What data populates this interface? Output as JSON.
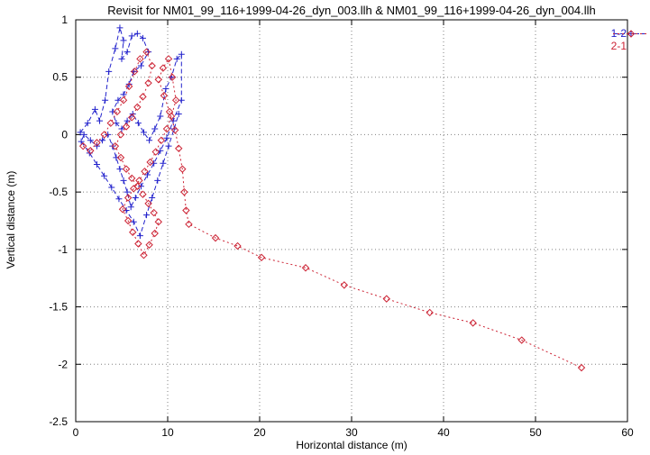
{
  "chart_data": {
    "type": "scatter",
    "title": "Revisit for NM01_99_116+1999-04-26_dyn_003.llh & NM01_99_116+1999-04-26_dyn_004.llh",
    "xlabel": "Horizontal distance (m)",
    "ylabel": "Vertical distance (m)",
    "xlim": [
      0,
      60
    ],
    "ylim": [
      -2.5,
      1
    ],
    "xticks": [
      0,
      10,
      20,
      30,
      40,
      50,
      60
    ],
    "yticks": [
      -2.5,
      -2,
      -1.5,
      -1,
      -0.5,
      0,
      0.5,
      1
    ],
    "grid": true,
    "grid_style": "dotted",
    "legend_position": "top-right-inside",
    "background": "#ffffff",
    "series": [
      {
        "name": "1-2",
        "color": "#2222cc",
        "marker": "plus",
        "dash": "5,3",
        "points": [
          [
            0.5,
            0.02
          ],
          [
            1.3,
            0.1
          ],
          [
            2.1,
            0.22
          ],
          [
            2.6,
            0.12
          ],
          [
            3.2,
            0.3
          ],
          [
            3.6,
            0.55
          ],
          [
            4.3,
            0.75
          ],
          [
            4.8,
            0.93
          ],
          [
            5.2,
            0.82
          ],
          [
            5.0,
            0.66
          ],
          [
            5.6,
            0.72
          ],
          [
            6.1,
            0.86
          ],
          [
            6.7,
            0.88
          ],
          [
            7.3,
            0.84
          ],
          [
            7.9,
            0.72
          ],
          [
            7.1,
            0.6
          ],
          [
            6.3,
            0.55
          ],
          [
            5.8,
            0.44
          ],
          [
            5.2,
            0.35
          ],
          [
            4.6,
            0.3
          ],
          [
            4.0,
            0.2
          ],
          [
            4.4,
            0.1
          ],
          [
            5.0,
            0.05
          ],
          [
            5.6,
            0.12
          ],
          [
            6.2,
            0.18
          ],
          [
            6.8,
            0.1
          ],
          [
            7.4,
            0.02
          ],
          [
            8.0,
            -0.05
          ],
          [
            8.6,
            0.05
          ],
          [
            9.2,
            0.16
          ],
          [
            9.8,
            0.4
          ],
          [
            10.4,
            0.5
          ],
          [
            11.0,
            0.66
          ],
          [
            11.5,
            0.7
          ],
          [
            11.5,
            0.3
          ],
          [
            10.6,
            0.12
          ],
          [
            9.9,
            -0.03
          ],
          [
            9.2,
            -0.14
          ],
          [
            8.5,
            -0.25
          ],
          [
            7.8,
            -0.35
          ],
          [
            7.1,
            -0.45
          ],
          [
            6.5,
            -0.55
          ],
          [
            6.0,
            -0.63
          ],
          [
            5.6,
            -0.5
          ],
          [
            5.2,
            -0.4
          ],
          [
            4.8,
            -0.3
          ],
          [
            4.4,
            -0.2
          ],
          [
            4.0,
            -0.1
          ],
          [
            3.5,
            0.0
          ],
          [
            2.9,
            -0.05
          ],
          [
            2.3,
            -0.1
          ],
          [
            1.6,
            -0.05
          ],
          [
            0.9,
            0.0
          ],
          [
            0.6,
            -0.06
          ],
          [
            1.5,
            -0.16
          ],
          [
            2.3,
            -0.26
          ],
          [
            3.1,
            -0.36
          ],
          [
            3.9,
            -0.46
          ],
          [
            4.7,
            -0.56
          ],
          [
            5.5,
            -0.66
          ],
          [
            6.3,
            -0.76
          ],
          [
            7.0,
            -0.88
          ],
          [
            7.7,
            -0.7
          ],
          [
            8.3,
            -0.55
          ],
          [
            8.9,
            -0.4
          ],
          [
            9.5,
            -0.25
          ],
          [
            10.1,
            -0.1
          ],
          [
            10.7,
            0.05
          ],
          [
            11.2,
            0.18
          ]
        ]
      },
      {
        "name": "2-1",
        "color": "#cc2233",
        "marker": "diamond",
        "dash": "2,3",
        "points": [
          [
            0.8,
            -0.1
          ],
          [
            1.6,
            -0.14
          ],
          [
            2.3,
            -0.07
          ],
          [
            3.1,
            0.0
          ],
          [
            3.8,
            0.1
          ],
          [
            4.5,
            0.2
          ],
          [
            5.2,
            0.3
          ],
          [
            5.8,
            0.42
          ],
          [
            6.4,
            0.55
          ],
          [
            7.0,
            0.66
          ],
          [
            7.7,
            0.72
          ],
          [
            8.3,
            0.6
          ],
          [
            7.9,
            0.45
          ],
          [
            7.3,
            0.33
          ],
          [
            6.7,
            0.24
          ],
          [
            6.1,
            0.15
          ],
          [
            5.5,
            0.07
          ],
          [
            4.9,
            0.0
          ],
          [
            4.3,
            -0.1
          ],
          [
            4.9,
            -0.2
          ],
          [
            5.5,
            -0.3
          ],
          [
            6.1,
            -0.38
          ],
          [
            6.7,
            -0.45
          ],
          [
            7.3,
            -0.52
          ],
          [
            7.9,
            -0.6
          ],
          [
            8.5,
            -0.68
          ],
          [
            9.0,
            -0.76
          ],
          [
            8.6,
            -0.86
          ],
          [
            8.0,
            -0.96
          ],
          [
            7.4,
            -1.05
          ],
          [
            6.8,
            -0.95
          ],
          [
            6.2,
            -0.85
          ],
          [
            5.7,
            -0.75
          ],
          [
            5.1,
            -0.65
          ],
          [
            5.7,
            -0.55
          ],
          [
            6.3,
            -0.47
          ],
          [
            6.9,
            -0.4
          ],
          [
            7.5,
            -0.32
          ],
          [
            8.1,
            -0.24
          ],
          [
            8.7,
            -0.15
          ],
          [
            9.3,
            -0.05
          ],
          [
            9.9,
            0.05
          ],
          [
            10.4,
            0.16
          ],
          [
            10.9,
            0.3
          ],
          [
            10.5,
            0.5
          ],
          [
            10.1,
            0.66
          ],
          [
            9.5,
            0.58
          ],
          [
            9.0,
            0.48
          ],
          [
            9.6,
            0.34
          ],
          [
            10.2,
            0.2
          ],
          [
            10.8,
            0.04
          ],
          [
            11.2,
            -0.12
          ],
          [
            11.6,
            -0.3
          ],
          [
            11.8,
            -0.5
          ],
          [
            12.0,
            -0.66
          ],
          [
            12.3,
            -0.78
          ],
          [
            15.2,
            -0.9
          ],
          [
            17.6,
            -0.97
          ],
          [
            20.2,
            -1.07
          ],
          [
            25.0,
            -1.16
          ],
          [
            29.2,
            -1.31
          ],
          [
            33.8,
            -1.43
          ],
          [
            38.5,
            -1.55
          ],
          [
            43.2,
            -1.64
          ],
          [
            48.5,
            -1.79
          ],
          [
            55.0,
            -2.03
          ]
        ]
      }
    ]
  }
}
